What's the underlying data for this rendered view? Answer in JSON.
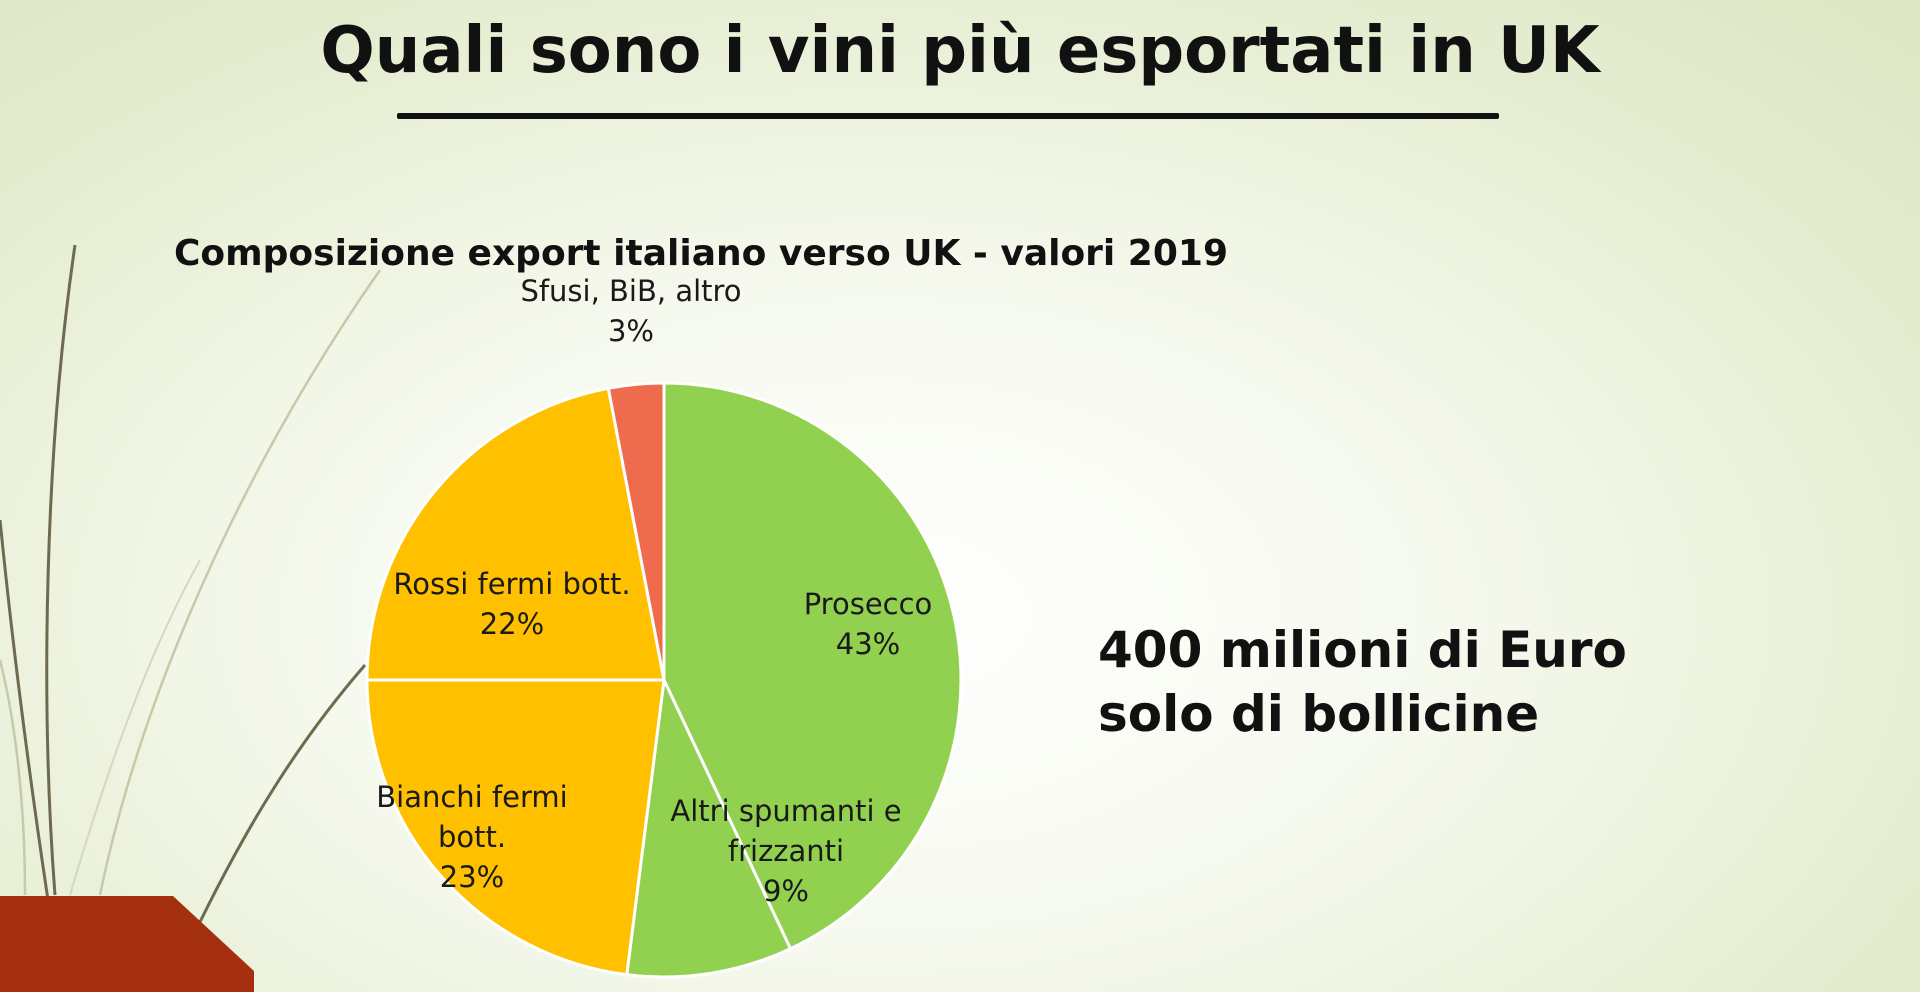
{
  "slide": {
    "title": "Quali sono i vini più esportati in UK",
    "callout_line1": "400 milioni di Euro",
    "callout_line2": "solo di bollicine"
  },
  "colors": {
    "green": "#92d050",
    "yellow": "#ffc000",
    "orange": "#ef6b4d",
    "stripe": "#a5300f"
  },
  "chart_data": {
    "type": "pie",
    "title": "Composizione export italiano verso UK - valori 2019",
    "unit": "%",
    "slices": [
      {
        "label": "Prosecco",
        "value": 43,
        "value_label": "43%",
        "color": "#92d050"
      },
      {
        "label": "Altri spumanti e frizzanti",
        "value": 9,
        "value_label": "9%",
        "color": "#92d050"
      },
      {
        "label": "Bianchi fermi bott.",
        "value": 23,
        "value_label": "23%",
        "color": "#ffc000"
      },
      {
        "label": "Rossi fermi bott.",
        "value": 22,
        "value_label": "22%",
        "color": "#ffc000"
      },
      {
        "label": "Sfusi, BiB, altro",
        "value": 3,
        "value_label": "3%",
        "color": "#ef6b4d"
      }
    ]
  }
}
